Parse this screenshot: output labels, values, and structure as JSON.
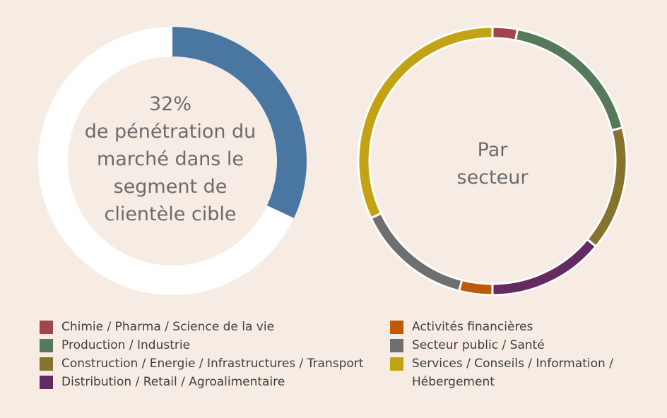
{
  "chart_data": [
    {
      "type": "pie",
      "variant": "donut",
      "center_text": {
        "value": "32%",
        "caption_lines": [
          "de pénétration du",
          "marché dans le",
          "segment de",
          "clientèle cible"
        ]
      },
      "slices": [
        {
          "label": "",
          "value": 32,
          "color": "#4a77a2"
        },
        {
          "label": "",
          "value": 68,
          "color": "#ffffff"
        }
      ]
    },
    {
      "type": "pie",
      "variant": "donut",
      "center_text": {
        "lines": [
          "Par",
          "secteur"
        ]
      },
      "slices": [
        {
          "label": "Chimie / Pharma / Science de la vie",
          "value": 3,
          "color": "#a0454b"
        },
        {
          "label": "Production / Industrie",
          "value": 18,
          "color": "#56795b"
        },
        {
          "label": "Construction / Energie / Infrastructures / Transport",
          "value": 15,
          "color": "#86732d"
        },
        {
          "label": "Distribution / Retail / Agroalimentaire",
          "value": 14,
          "color": "#652a62"
        },
        {
          "label": "Activités financières",
          "value": 4,
          "color": "#bf5a0b"
        },
        {
          "label": "Secteur public / Santé",
          "value": 14,
          "color": "#6f6f6f"
        },
        {
          "label": "Services / Conseils / Information / Hébergement",
          "value": 32,
          "color": "#c3a313"
        }
      ]
    }
  ],
  "legend_left": [
    {
      "label": "Chimie / Pharma / Science de la vie",
      "color": "#a0454b"
    },
    {
      "label": "Production / Industrie",
      "color": "#56795b"
    },
    {
      "label": "Construction / Energie / Infrastructures / Transport",
      "color": "#86732d"
    },
    {
      "label": "Distribution / Retail / Agroalimentaire",
      "color": "#652a62"
    }
  ],
  "legend_right": [
    {
      "label": "Activités financières",
      "color": "#bf5a0b"
    },
    {
      "label": "Secteur public / Santé",
      "color": "#6f6f6f"
    },
    {
      "label_lines": [
        "Services / Conseils / Information /",
        "Hébergement"
      ],
      "color": "#c3a313"
    }
  ],
  "colors": {
    "background": "#f6ece3",
    "center_text": "#6b6b6b"
  }
}
